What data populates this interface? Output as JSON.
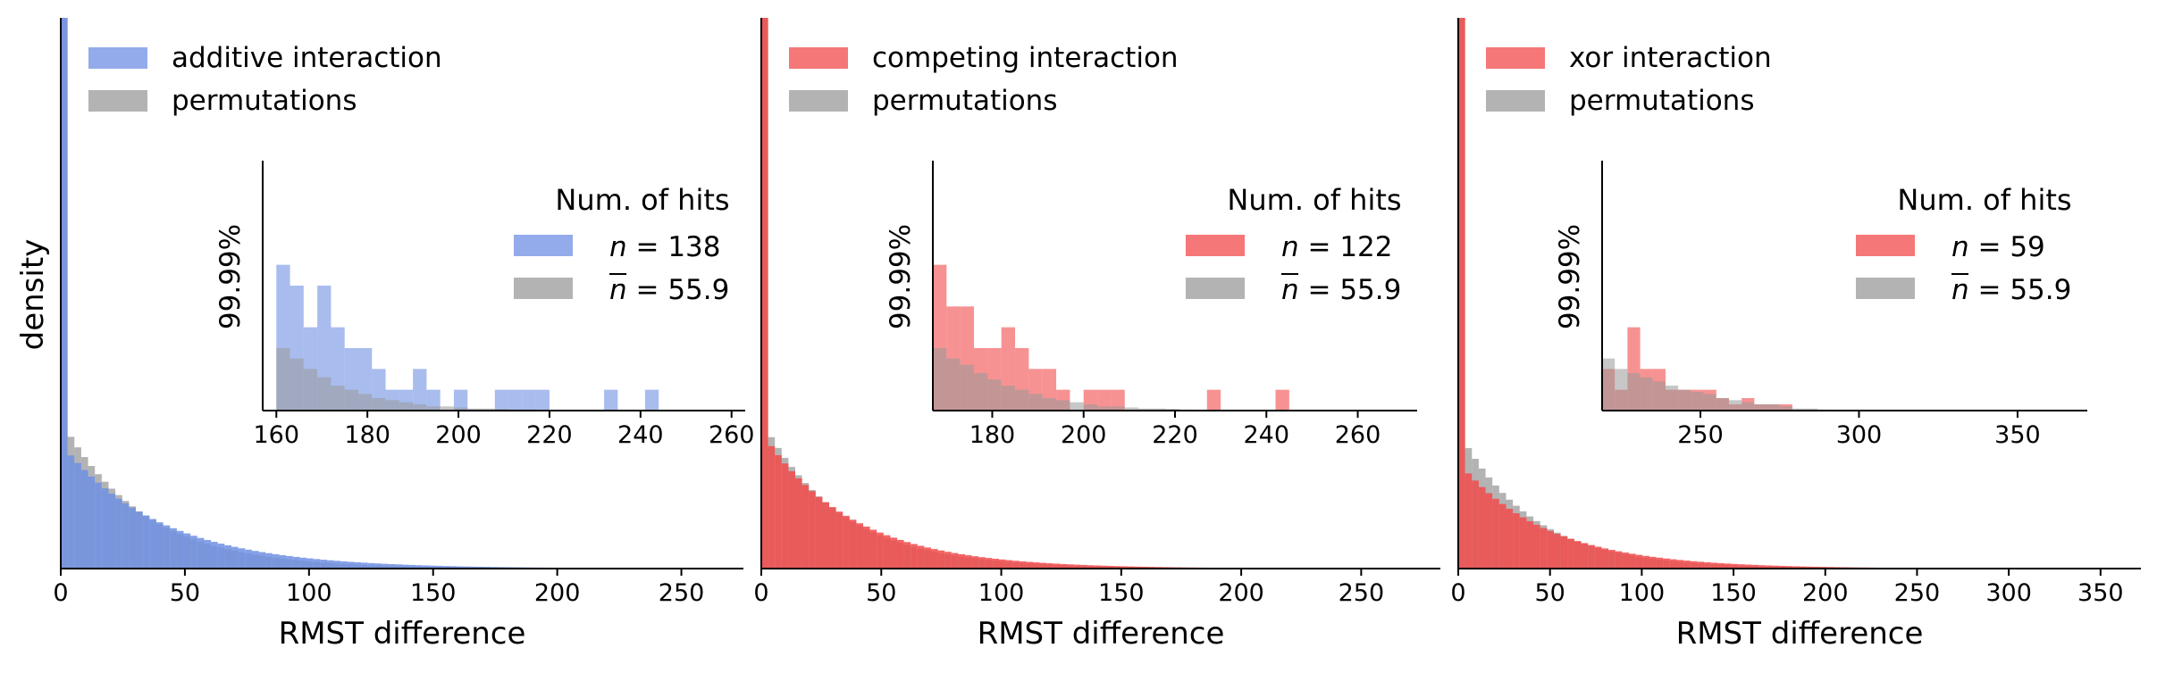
{
  "figure": {
    "ylabel": "density",
    "colors": {
      "blue": "#6f8fe3",
      "red": "#f24a4a",
      "gray": "#999999",
      "axis": "#000000"
    }
  },
  "chart_data": [
    {
      "type": "bar",
      "title": "",
      "xlabel": "RMST difference",
      "ylabel": "density",
      "xlim": [
        0,
        275
      ],
      "ylim": [
        0,
        0.03
      ],
      "xticks": [
        "0",
        "50",
        "100",
        "150",
        "200",
        "250"
      ],
      "legend": {
        "position": "top-left",
        "entries": [
          "additive interaction",
          "permutations"
        ]
      },
      "color": "#6f8fe3",
      "series": [
        {
          "name": "additive interaction",
          "bins_start": 0,
          "bin_width": 2.75,
          "decay": 40,
          "first_bin_spike": 0.03,
          "head_density": 0.0066
        },
        {
          "name": "permutations",
          "bins_start": 0,
          "bin_width": 2.75,
          "decay": 33,
          "first_bin_spike": 0.03,
          "head_density": 0.0078
        }
      ],
      "inset": {
        "ylabel": "99.99%",
        "xlim": [
          157,
          263
        ],
        "xticks": [
          "160",
          "180",
          "200",
          "220",
          "240",
          "260"
        ],
        "legend_title": "Num. of hits",
        "legend_entries": [
          {
            "label_var": "n",
            "label_rest": " = 138"
          },
          {
            "label_var": "n",
            "label_rest": " = 55.9",
            "overline": true
          }
        ],
        "bin_width": 3,
        "bins_start": 160,
        "hits": [
          7,
          6,
          4,
          6,
          4,
          3,
          3,
          2,
          1,
          1,
          2,
          1,
          0,
          1,
          0,
          0,
          1,
          1,
          1,
          1,
          0,
          0,
          0,
          0,
          1,
          0,
          0,
          1,
          0,
          0,
          0,
          0,
          0,
          0
        ],
        "perm": [
          3,
          2.5,
          2,
          1.6,
          1.2,
          1,
          0.8,
          0.6,
          0.5,
          0.4,
          0.3,
          0.2,
          0.2,
          0.15,
          0.1,
          0.1,
          0.08,
          0.05,
          0.05,
          0.04,
          0.03,
          0.02,
          0.02,
          0.01,
          0.01,
          0,
          0,
          0,
          0,
          0,
          0,
          0,
          0,
          0
        ],
        "hits_max": 12
      }
    },
    {
      "type": "bar",
      "title": "",
      "xlabel": "RMST difference",
      "ylabel": "",
      "xlim": [
        0,
        283
      ],
      "ylim": [
        0,
        0.03
      ],
      "xticks": [
        "0",
        "50",
        "100",
        "150",
        "200",
        "250"
      ],
      "legend": {
        "position": "top-left",
        "entries": [
          "competing interaction",
          "permutations"
        ]
      },
      "color": "#f24a4a",
      "series": [
        {
          "name": "competing interaction",
          "bins_start": 0,
          "bin_width": 2.83,
          "decay": 37,
          "first_bin_spike": 0.03,
          "head_density": 0.0072
        },
        {
          "name": "permutations",
          "bins_start": 0,
          "bin_width": 2.83,
          "decay": 33,
          "first_bin_spike": 0.03,
          "head_density": 0.0078
        }
      ],
      "inset": {
        "ylabel": "99.99%",
        "xlim": [
          167,
          273
        ],
        "xticks": [
          "180",
          "200",
          "220",
          "240",
          "260"
        ],
        "legend_title": "Num. of hits",
        "legend_entries": [
          {
            "label_var": "n",
            "label_rest": " = 122"
          },
          {
            "label_var": "n",
            "label_rest": " = 55.9",
            "overline": true
          }
        ],
        "bin_width": 3,
        "bins_start": 167,
        "hits": [
          7,
          5,
          5,
          3,
          3,
          4,
          3,
          2,
          2,
          1,
          0,
          1,
          1,
          1,
          0,
          0,
          0,
          0,
          0,
          0,
          1,
          0,
          0,
          0,
          0,
          1,
          0,
          0,
          0,
          0,
          0,
          0,
          0,
          0,
          0
        ],
        "perm": [
          3,
          2.5,
          2.2,
          1.8,
          1.5,
          1.2,
          1,
          0.8,
          0.6,
          0.5,
          0.4,
          0.3,
          0.2,
          0.2,
          0.15,
          0.1,
          0.1,
          0.08,
          0.05,
          0.04,
          0.03,
          0.02,
          0.02,
          0.01,
          0.01,
          0,
          0,
          0,
          0,
          0,
          0,
          0,
          0,
          0,
          0
        ],
        "hits_max": 12
      }
    },
    {
      "type": "bar",
      "title": "",
      "xlabel": "RMST difference",
      "ylabel": "",
      "xlim": [
        0,
        372
      ],
      "ylim": [
        0,
        0.03
      ],
      "xticks": [
        "0",
        "50",
        "100",
        "150",
        "200",
        "250",
        "300",
        "350"
      ],
      "legend": {
        "position": "top-left",
        "entries": [
          "xor interaction",
          "permutations"
        ]
      },
      "color": "#f24a4a",
      "series": [
        {
          "name": "xor interaction",
          "bins_start": 0,
          "bin_width": 3.72,
          "decay": 48,
          "first_bin_spike": 0.03,
          "head_density": 0.0056
        },
        {
          "name": "permutations",
          "bins_start": 0,
          "bin_width": 3.72,
          "decay": 40,
          "first_bin_spike": 0.03,
          "head_density": 0.0072
        }
      ],
      "inset": {
        "ylabel": "99.99%",
        "xlim": [
          219,
          372
        ],
        "xticks": [
          "250",
          "300",
          "350"
        ],
        "legend_title": "Num. of hits",
        "legend_entries": [
          {
            "label_var": "n",
            "label_rest": " = 59"
          },
          {
            "label_var": "n",
            "label_rest": " = 55.9",
            "overline": true
          }
        ],
        "bin_width": 4,
        "bins_start": 219,
        "hits": [
          2,
          1,
          4,
          2,
          2,
          1,
          1,
          1,
          1,
          0.6,
          0.3,
          0.6,
          0.3,
          0.3,
          0.3,
          0,
          0,
          0,
          0,
          0,
          0,
          0,
          0,
          0,
          0,
          0,
          0,
          0,
          0,
          0,
          0,
          0,
          0,
          0,
          0,
          0,
          0,
          0
        ],
        "perm": [
          2.5,
          2,
          1.8,
          1.6,
          1.4,
          1.2,
          1,
          0.9,
          0.8,
          0.6,
          0.5,
          0.4,
          0.3,
          0.3,
          0.2,
          0.1,
          0.1,
          0.05,
          0,
          0,
          0,
          0,
          0,
          0,
          0,
          0,
          0,
          0,
          0,
          0,
          0,
          0,
          0,
          0,
          0,
          0,
          0,
          0
        ],
        "hits_max": 12
      }
    }
  ]
}
